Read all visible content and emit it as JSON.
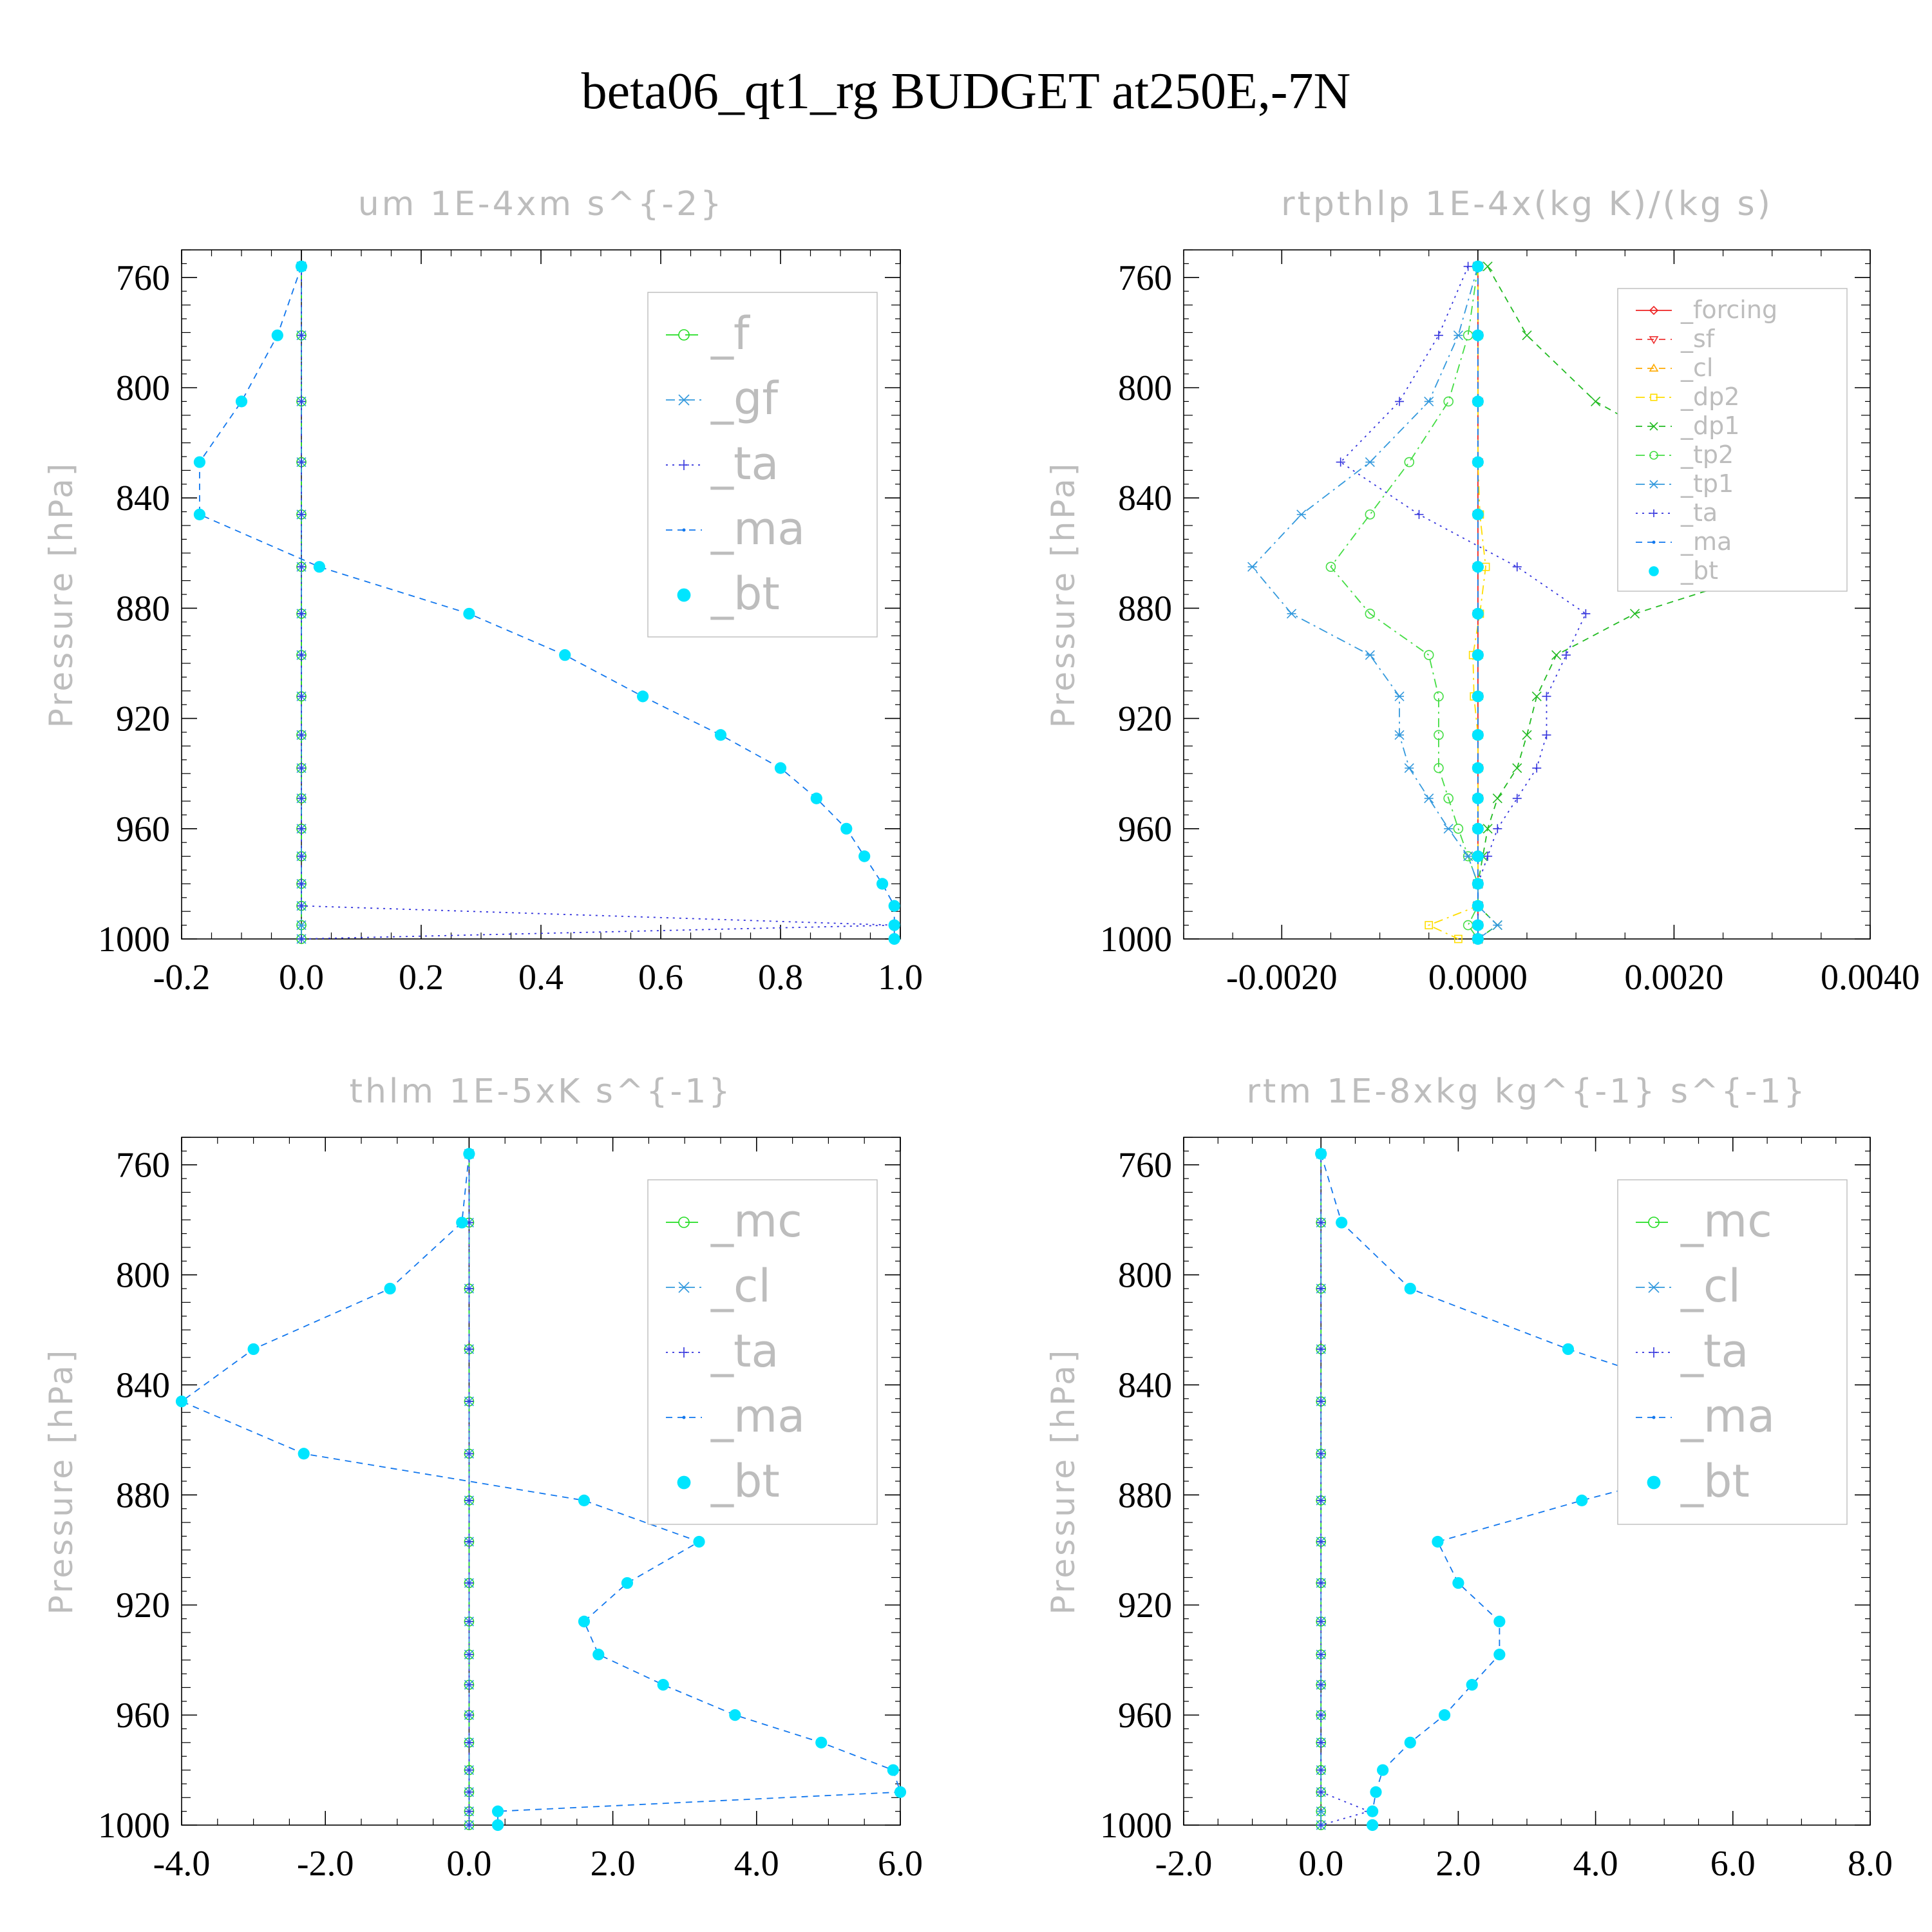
{
  "figure": {
    "title": "beta06_qt1_rg  BUDGET at250E,-7N"
  },
  "chart_data": [
    {
      "type": "line",
      "title": "um   1E-4xm s^{-2}",
      "ylabel": "Pressure [hPa]",
      "xlabel": "",
      "xlim": [
        -0.2,
        1.0
      ],
      "ylim": [
        1000,
        750
      ],
      "xticks": [
        -0.2,
        0.0,
        0.2,
        0.4,
        0.6,
        0.8,
        1.0
      ],
      "xtick_labels": [
        "-0.2",
        "0.0",
        "0.2",
        "0.4",
        "0.6",
        "0.8",
        "1.0"
      ],
      "yticks": [
        760,
        800,
        840,
        880,
        920,
        960,
        1000
      ],
      "ytick_labels": [
        "760",
        "800",
        "840",
        "880",
        "920",
        "960",
        "1000"
      ],
      "legend_position": "top-right",
      "legend_size": "large",
      "pressure_levels": [
        756,
        781,
        805,
        827,
        846,
        865,
        882,
        897,
        912,
        926,
        938,
        949,
        960,
        970,
        980,
        988,
        995,
        1000
      ],
      "series": [
        {
          "name": "_f",
          "color": "#22dd22",
          "marker": "circle",
          "dash": "long-dash",
          "values": [
            0,
            0,
            0,
            0,
            0,
            0,
            0,
            0,
            0,
            0,
            0,
            0,
            0,
            0,
            0,
            0,
            0,
            0
          ]
        },
        {
          "name": "_gf",
          "color": "#3399dd",
          "marker": "asterisk",
          "dash": "dash-dot",
          "values": [
            0,
            0,
            0,
            0,
            0,
            0,
            0,
            0,
            0,
            0,
            0,
            0,
            0,
            0,
            0,
            0,
            0,
            0
          ]
        },
        {
          "name": "_ta",
          "color": "#3333dd",
          "marker": "plus",
          "dash": "dot",
          "values": [
            0,
            0,
            0,
            0,
            0,
            0,
            0,
            0,
            0,
            0,
            0,
            0,
            0,
            0,
            0,
            0,
            0.99,
            0
          ]
        },
        {
          "name": "_ma",
          "color": "#1177ee",
          "marker": "dot",
          "dash": "dash",
          "values": [
            0.0,
            -0.04,
            -0.1,
            -0.17,
            -0.17,
            0.03,
            0.28,
            0.44,
            0.57,
            0.7,
            0.8,
            0.86,
            0.91,
            0.94,
            0.97,
            0.99,
            0.99,
            0.99
          ]
        },
        {
          "name": "_bt",
          "color": "#00e5ff",
          "marker": "filled-circle",
          "dash": "none",
          "values": [
            0.0,
            -0.04,
            -0.1,
            -0.17,
            -0.17,
            0.03,
            0.28,
            0.44,
            0.57,
            0.7,
            0.8,
            0.86,
            0.91,
            0.94,
            0.97,
            0.99,
            0.99,
            0.99
          ]
        }
      ]
    },
    {
      "type": "line",
      "title": "rtpthlp   1E-4x(kg K)/(kg s)",
      "ylabel": "Pressure [hPa]",
      "xlabel": "",
      "xlim": [
        -0.003,
        0.004
      ],
      "ylim": [
        1000,
        750
      ],
      "xticks": [
        -0.002,
        0.0,
        0.002,
        0.004
      ],
      "xtick_labels": [
        "-0.0020",
        "0.0000",
        "0.0020",
        "0.0040"
      ],
      "yticks": [
        760,
        800,
        840,
        880,
        920,
        960,
        1000
      ],
      "ytick_labels": [
        "760",
        "800",
        "840",
        "880",
        "920",
        "960",
        "1000"
      ],
      "legend_position": "top-right",
      "legend_size": "small",
      "pressure_levels": [
        756,
        781,
        805,
        827,
        846,
        865,
        882,
        897,
        912,
        926,
        938,
        949,
        960,
        970,
        980,
        988,
        995,
        1000
      ],
      "series": [
        {
          "name": "_forcing",
          "color": "#ee2222",
          "marker": "diamond",
          "dash": "solid",
          "values": [
            0,
            0,
            0,
            0,
            0,
            0,
            0,
            0,
            0,
            0,
            0,
            0,
            0,
            0,
            0,
            0,
            0,
            0
          ]
        },
        {
          "name": "_sf",
          "color": "#ee3333",
          "marker": "triangle-down",
          "dash": "dash",
          "values": [
            0,
            0,
            0,
            0,
            0,
            0,
            0,
            0,
            0,
            0,
            0,
            0,
            0,
            0,
            0,
            0,
            0,
            0
          ]
        },
        {
          "name": "_cl",
          "color": "#ffaa00",
          "marker": "triangle-up",
          "dash": "dash",
          "values": [
            0,
            0,
            0,
            0,
            0,
            0,
            0,
            0,
            0,
            0,
            0,
            0,
            0,
            0,
            0,
            0,
            0,
            0
          ]
        },
        {
          "name": "_dp2",
          "color": "#ffdd00",
          "marker": "square",
          "dash": "dash-dot",
          "values": [
            0,
            0,
            0,
            0,
            2e-05,
            8e-05,
            2e-05,
            -5e-05,
            -4e-05,
            0,
            0,
            0,
            0,
            0,
            0,
            0,
            -0.0005,
            -0.0002
          ]
        },
        {
          "name": "_dp1",
          "color": "#22bb22",
          "marker": "x",
          "dash": "dash",
          "values": [
            0.0001,
            0.0005,
            0.0012,
            0.0023,
            0.0033,
            0.0031,
            0.0016,
            0.0008,
            0.0006,
            0.0005,
            0.0004,
            0.0002,
            0.0001,
            5e-05,
            0,
            0,
            0.0002,
            0
          ]
        },
        {
          "name": "_tp2",
          "color": "#44dd44",
          "marker": "circle",
          "dash": "dash-dot",
          "values": [
            0,
            -0.0001,
            -0.0003,
            -0.0007,
            -0.0011,
            -0.0015,
            -0.0011,
            -0.0005,
            -0.0004,
            -0.0004,
            -0.0004,
            -0.0003,
            -0.0002,
            -0.0001,
            0,
            0,
            -0.0001,
            0
          ]
        },
        {
          "name": "_tp1",
          "color": "#3399dd",
          "marker": "asterisk",
          "dash": "dash-dot",
          "values": [
            0,
            -0.0002,
            -0.0005,
            -0.0011,
            -0.0018,
            -0.0023,
            -0.0019,
            -0.0011,
            -0.0008,
            -0.0008,
            -0.0007,
            -0.0005,
            -0.0003,
            -0.0001,
            0,
            0,
            0.0002,
            0
          ]
        },
        {
          "name": "_ta",
          "color": "#3333dd",
          "marker": "plus",
          "dash": "dot",
          "values": [
            -0.0001,
            -0.0004,
            -0.0008,
            -0.0014,
            -0.0006,
            0.0004,
            0.0011,
            0.0009,
            0.0007,
            0.0007,
            0.0006,
            0.0004,
            0.0002,
            0.0001,
            0,
            0,
            0,
            0
          ]
        },
        {
          "name": "_ma",
          "color": "#1177ee",
          "marker": "dot",
          "dash": "dash",
          "values": [
            0,
            0,
            0,
            0,
            0,
            0,
            0,
            0,
            0,
            0,
            0,
            0,
            0,
            0,
            0,
            0,
            0,
            0
          ]
        },
        {
          "name": "_bt",
          "color": "#00e5ff",
          "marker": "filled-circle",
          "dash": "none",
          "values": [
            0,
            0,
            0,
            0,
            0,
            0,
            0,
            0,
            0,
            0,
            0,
            0,
            0,
            0,
            0,
            0,
            0,
            0
          ]
        }
      ]
    },
    {
      "type": "line",
      "title": "thlm   1E-5xK s^{-1}",
      "ylabel": "Pressure [hPa]",
      "xlabel": "",
      "xlim": [
        -4.0,
        6.0
      ],
      "ylim": [
        1000,
        750
      ],
      "xticks": [
        -4.0,
        -2.0,
        0.0,
        2.0,
        4.0,
        6.0
      ],
      "xtick_labels": [
        "-4.0",
        "-2.0",
        "0.0",
        "2.0",
        "4.0",
        "6.0"
      ],
      "yticks": [
        760,
        800,
        840,
        880,
        920,
        960,
        1000
      ],
      "ytick_labels": [
        "760",
        "800",
        "840",
        "880",
        "920",
        "960",
        "1000"
      ],
      "legend_position": "top-right",
      "legend_size": "large",
      "pressure_levels": [
        756,
        781,
        805,
        827,
        846,
        865,
        882,
        897,
        912,
        926,
        938,
        949,
        960,
        970,
        980,
        988,
        995,
        1000
      ],
      "series": [
        {
          "name": "_mc",
          "color": "#22dd22",
          "marker": "circle",
          "dash": "long-dash",
          "values": [
            0,
            0,
            0,
            0,
            0,
            0,
            0,
            0,
            0,
            0,
            0,
            0,
            0,
            0,
            0,
            0,
            0,
            0
          ]
        },
        {
          "name": "_cl",
          "color": "#3399dd",
          "marker": "asterisk",
          "dash": "dash-dot",
          "values": [
            0,
            0,
            0,
            0,
            0,
            0,
            0,
            0,
            0,
            0,
            0,
            0,
            0,
            0,
            0,
            0,
            0,
            0
          ]
        },
        {
          "name": "_ta",
          "color": "#3333dd",
          "marker": "plus",
          "dash": "dot",
          "values": [
            0,
            0,
            0,
            0,
            0,
            0,
            0,
            0,
            0,
            0,
            0,
            0,
            0,
            0,
            0,
            0,
            0,
            0
          ]
        },
        {
          "name": "_ma",
          "color": "#1177ee",
          "marker": "dot",
          "dash": "dash",
          "values": [
            0.0,
            -0.1,
            -1.1,
            -3.0,
            -4.0,
            -2.3,
            1.6,
            3.2,
            2.2,
            1.6,
            1.8,
            2.7,
            3.7,
            4.9,
            5.9,
            6.0,
            0.4,
            0.4
          ]
        },
        {
          "name": "_bt",
          "color": "#00e5ff",
          "marker": "filled-circle",
          "dash": "none",
          "values": [
            0.0,
            -0.1,
            -1.1,
            -3.0,
            -4.0,
            -2.3,
            1.6,
            3.2,
            2.2,
            1.6,
            1.8,
            2.7,
            3.7,
            4.9,
            5.9,
            6.0,
            0.4,
            0.4
          ]
        }
      ]
    },
    {
      "type": "line",
      "title": "rtm   1E-8xkg kg^{-1} s^{-1}",
      "ylabel": "Pressure [hPa]",
      "xlabel": "",
      "xlim": [
        -2.0,
        8.0
      ],
      "ylim": [
        1000,
        750
      ],
      "xticks": [
        -2.0,
        0.0,
        2.0,
        4.0,
        6.0,
        8.0
      ],
      "xtick_labels": [
        "-2.0",
        "0.0",
        "2.0",
        "4.0",
        "6.0",
        "8.0"
      ],
      "yticks": [
        760,
        800,
        840,
        880,
        920,
        960,
        1000
      ],
      "ytick_labels": [
        "760",
        "800",
        "840",
        "880",
        "920",
        "960",
        "1000"
      ],
      "legend_position": "top-right",
      "legend_size": "large",
      "pressure_levels": [
        756,
        781,
        805,
        827,
        846,
        865,
        882,
        897,
        912,
        926,
        938,
        949,
        960,
        970,
        980,
        988,
        995,
        1000
      ],
      "series": [
        {
          "name": "_mc",
          "color": "#22dd22",
          "marker": "circle",
          "dash": "long-dash",
          "values": [
            0,
            0,
            0,
            0,
            0,
            0,
            0,
            0,
            0,
            0,
            0,
            0,
            0,
            0,
            0,
            0,
            0,
            0
          ]
        },
        {
          "name": "_cl",
          "color": "#3399dd",
          "marker": "asterisk",
          "dash": "dash-dot",
          "values": [
            0,
            0,
            0,
            0,
            0,
            0,
            0,
            0,
            0,
            0,
            0,
            0,
            0,
            0,
            0,
            0,
            0,
            0
          ]
        },
        {
          "name": "_ta",
          "color": "#3333dd",
          "marker": "plus",
          "dash": "dot",
          "values": [
            0,
            0,
            0,
            0,
            0,
            0,
            0,
            0,
            0,
            0,
            0,
            0,
            0,
            0,
            0,
            0,
            0.7,
            0
          ]
        },
        {
          "name": "_ma",
          "color": "#1177ee",
          "marker": "dot",
          "dash": "dash",
          "values": [
            0.0,
            0.3,
            1.3,
            3.6,
            5.9,
            6.4,
            3.8,
            1.7,
            2.0,
            2.6,
            2.6,
            2.2,
            1.8,
            1.3,
            0.9,
            0.8,
            0.75,
            0.75
          ]
        },
        {
          "name": "_bt",
          "color": "#00e5ff",
          "marker": "filled-circle",
          "dash": "none",
          "values": [
            0.0,
            0.3,
            1.3,
            3.6,
            5.9,
            6.4,
            3.8,
            1.7,
            2.0,
            2.6,
            2.6,
            2.2,
            1.8,
            1.3,
            0.9,
            0.8,
            0.75,
            0.75
          ]
        }
      ]
    }
  ]
}
